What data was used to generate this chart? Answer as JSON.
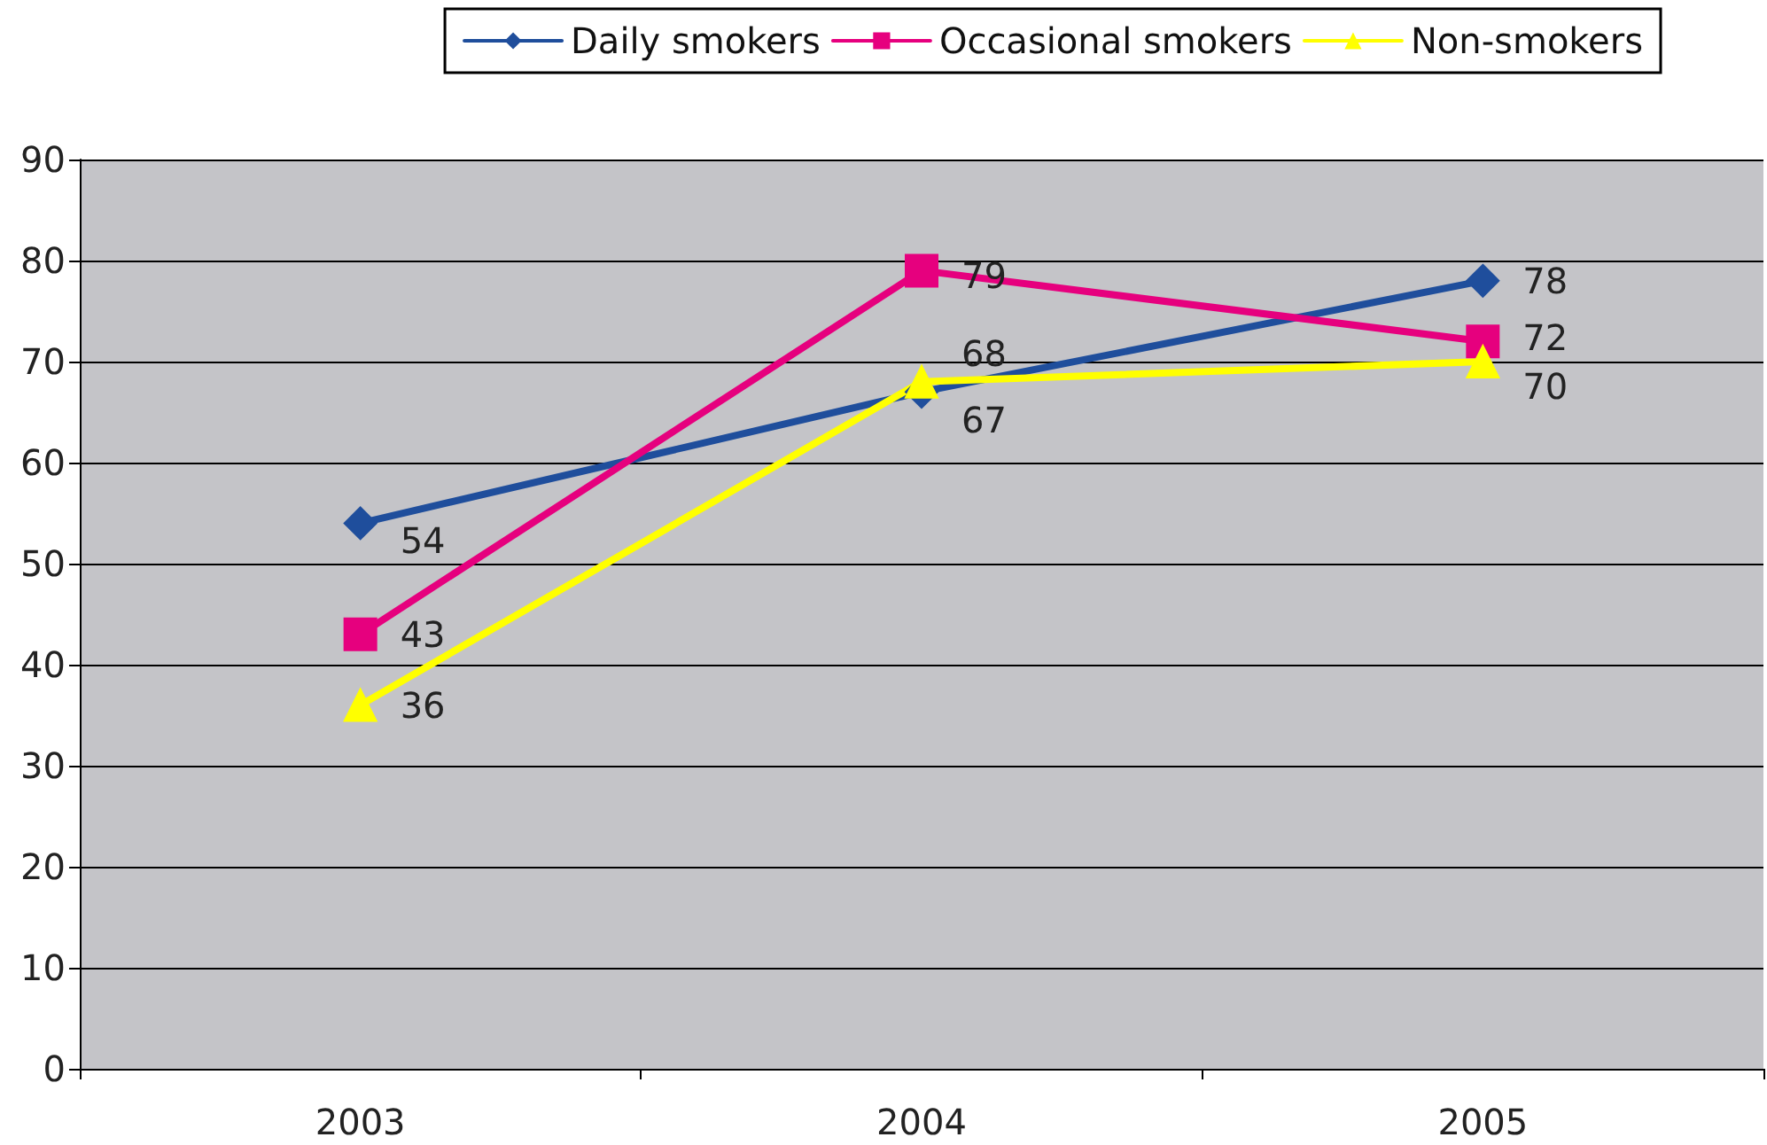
{
  "chart_data": {
    "type": "line",
    "categories": [
      "2003",
      "2004",
      "2005"
    ],
    "series": [
      {
        "name": "Daily smokers",
        "color": "#1f4e9c",
        "marker": "diamond",
        "values": [
          54,
          67,
          78
        ]
      },
      {
        "name": "Occasional smokers",
        "color": "#e6007e",
        "marker": "square",
        "values": [
          43,
          79,
          72
        ]
      },
      {
        "name": "Non-smokers",
        "color": "#ffff00",
        "marker": "triangle",
        "values": [
          36,
          68,
          70
        ]
      }
    ],
    "ylim": [
      0,
      90
    ],
    "yticks": [
      0,
      10,
      20,
      30,
      40,
      50,
      60,
      70,
      80,
      90
    ],
    "grid": "y",
    "legend": "top right",
    "data_labels": true,
    "line_style": "solid"
  }
}
